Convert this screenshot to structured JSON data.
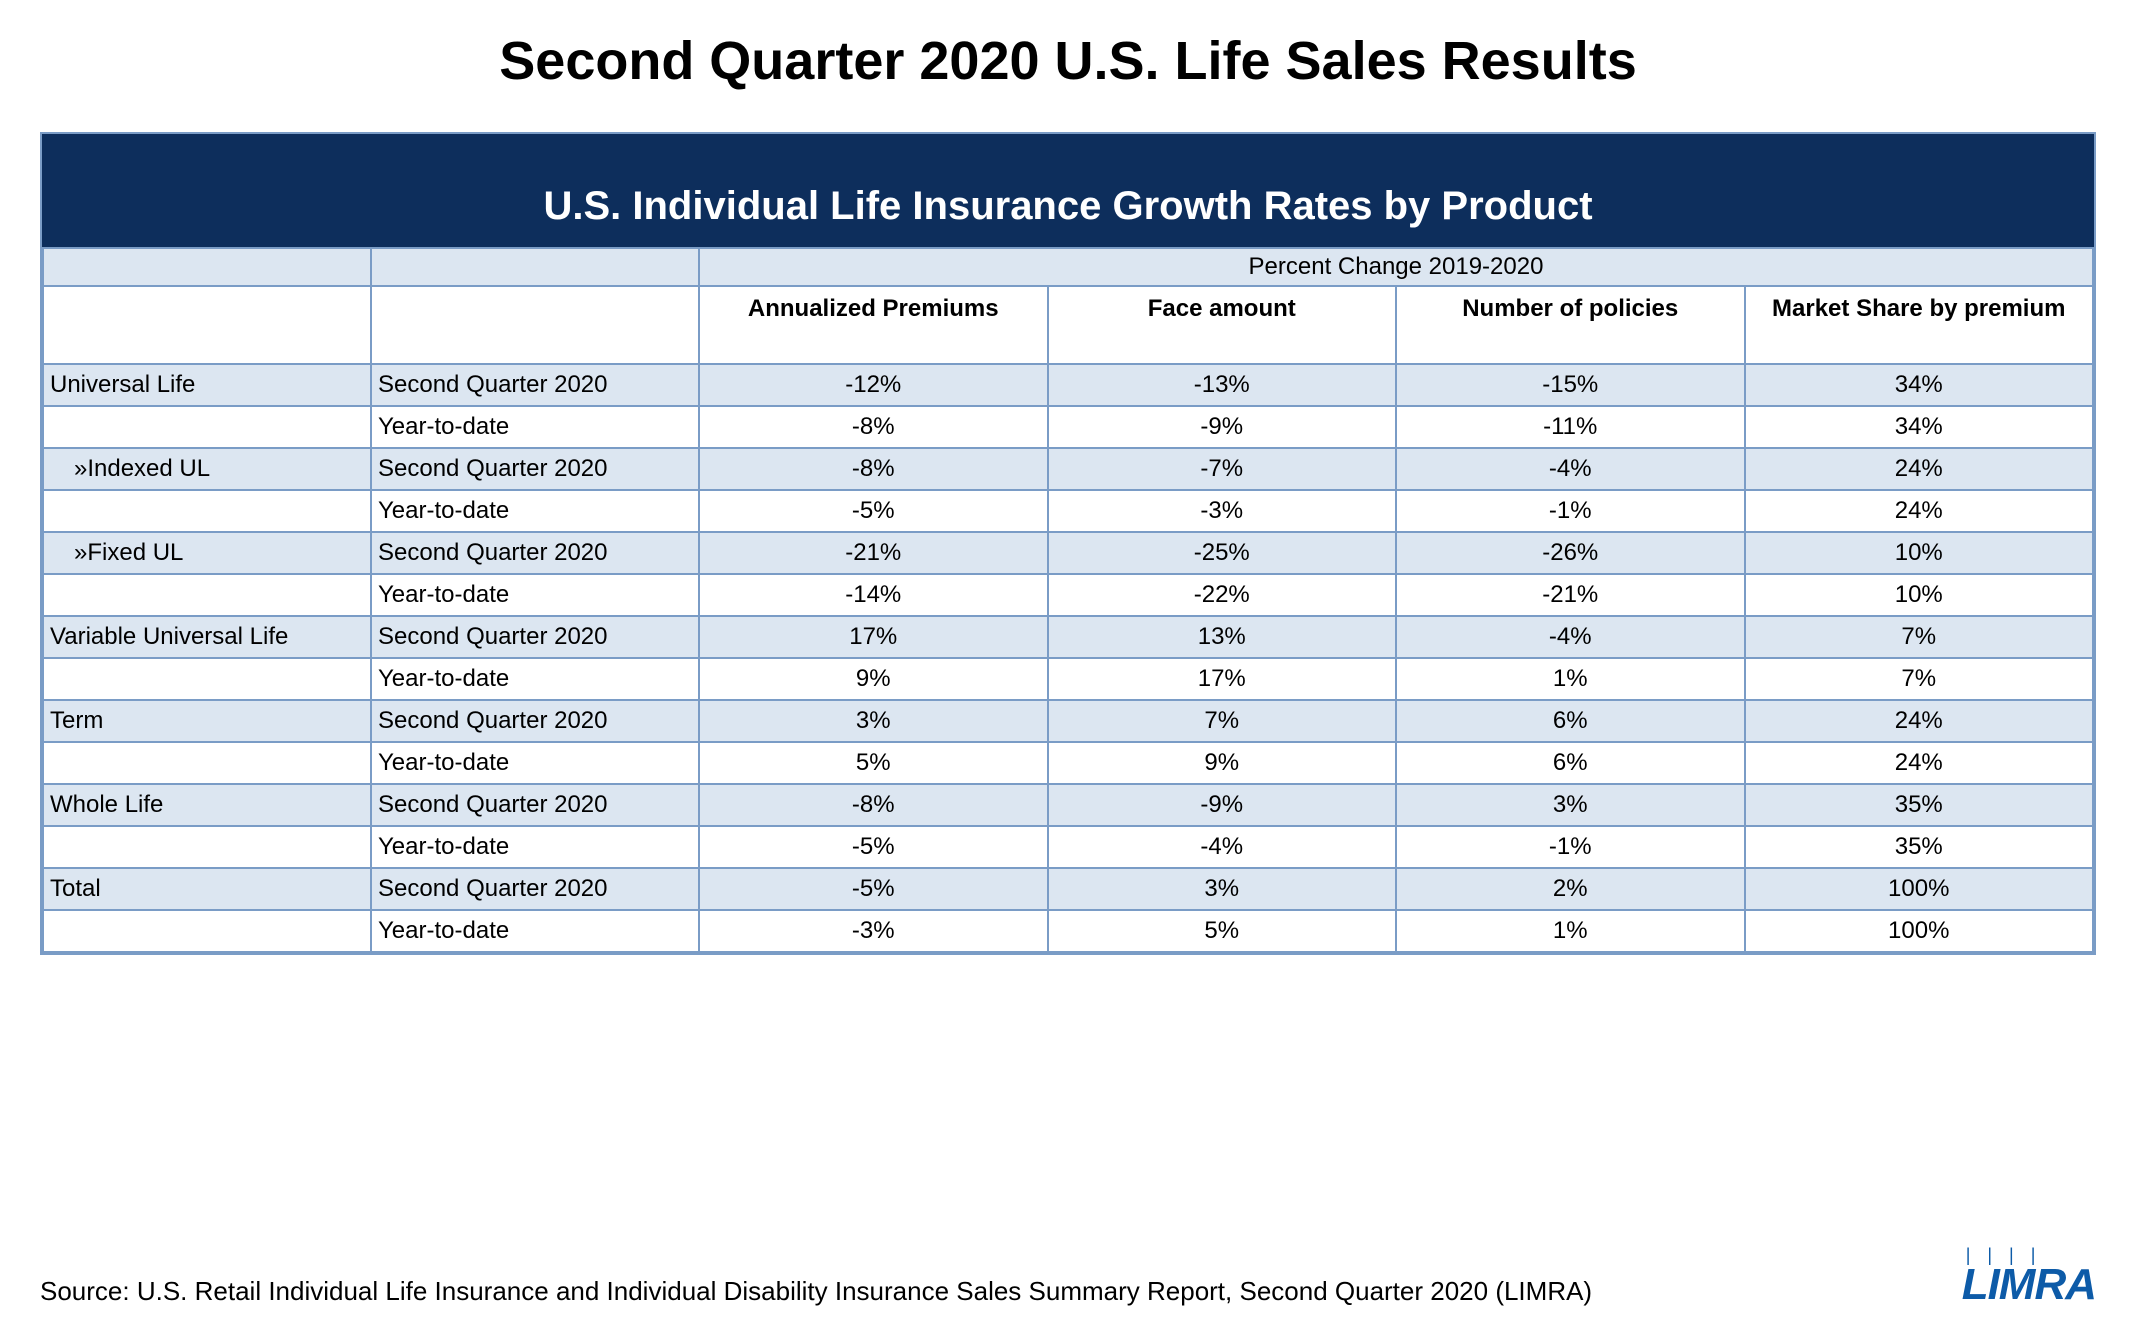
{
  "page_title": "Second Quarter 2020 U.S. Life Sales Results",
  "table_title": "U.S. Individual Life Insurance Growth Rates by Product",
  "subtitle": "Percent Change 2019-2020",
  "columns": [
    "Annualized Premiums",
    "Face amount",
    "Number of policies",
    "Market Share by premium"
  ],
  "colors": {
    "header_bg": "#0d2e5c",
    "header_text": "#ffffff",
    "band_alt": "#dce6f1",
    "border": "#7a9cc6",
    "logo": "#0d5ba8"
  },
  "rows": [
    {
      "product": "Universal Life",
      "indent": false,
      "period": "Second Quarter 2020",
      "v": [
        "-12%",
        "-13%",
        "-15%",
        "34%"
      ],
      "alt": true
    },
    {
      "product": "",
      "indent": false,
      "period": "Year-to-date",
      "v": [
        "-8%",
        "-9%",
        "-11%",
        "34%"
      ],
      "alt": false
    },
    {
      "product": "»Indexed UL",
      "indent": true,
      "period": "Second Quarter 2020",
      "v": [
        "-8%",
        "-7%",
        "-4%",
        "24%"
      ],
      "alt": true
    },
    {
      "product": "",
      "indent": false,
      "period": "Year-to-date",
      "v": [
        "-5%",
        "-3%",
        "-1%",
        "24%"
      ],
      "alt": false
    },
    {
      "product": "»Fixed UL",
      "indent": true,
      "period": "Second Quarter 2020",
      "v": [
        "-21%",
        "-25%",
        "-26%",
        "10%"
      ],
      "alt": true
    },
    {
      "product": "",
      "indent": false,
      "period": "Year-to-date",
      "v": [
        "-14%",
        "-22%",
        "-21%",
        "10%"
      ],
      "alt": false
    },
    {
      "product": "Variable Universal Life",
      "indent": false,
      "period": "Second Quarter 2020",
      "v": [
        "17%",
        "13%",
        "-4%",
        "7%"
      ],
      "alt": true
    },
    {
      "product": "",
      "indent": false,
      "period": "Year-to-date",
      "v": [
        "9%",
        "17%",
        "1%",
        "7%"
      ],
      "alt": false
    },
    {
      "product": "Term",
      "indent": false,
      "period": "Second Quarter 2020",
      "v": [
        "3%",
        "7%",
        "6%",
        "24%"
      ],
      "alt": true
    },
    {
      "product": "",
      "indent": false,
      "period": "Year-to-date",
      "v": [
        "5%",
        "9%",
        "6%",
        "24%"
      ],
      "alt": false
    },
    {
      "product": "Whole Life",
      "indent": false,
      "period": "Second Quarter 2020",
      "v": [
        "-8%",
        "-9%",
        "3%",
        "35%"
      ],
      "alt": true
    },
    {
      "product": "",
      "indent": false,
      "period": "Year-to-date",
      "v": [
        "-5%",
        "-4%",
        "-1%",
        "35%"
      ],
      "alt": false
    },
    {
      "product": "Total",
      "indent": false,
      "period": "Second Quarter 2020",
      "v": [
        "-5%",
        "3%",
        "2%",
        "100%"
      ],
      "alt": true
    },
    {
      "product": "",
      "indent": false,
      "period": "Year-to-date",
      "v": [
        "-3%",
        "5%",
        "1%",
        "100%"
      ],
      "alt": false
    }
  ],
  "source": "Source: U.S. Retail Individual Life Insurance and Individual Disability Insurance Sales Summary Report, Second Quarter 2020 (LIMRA)",
  "logo_text": "LIMRA"
}
